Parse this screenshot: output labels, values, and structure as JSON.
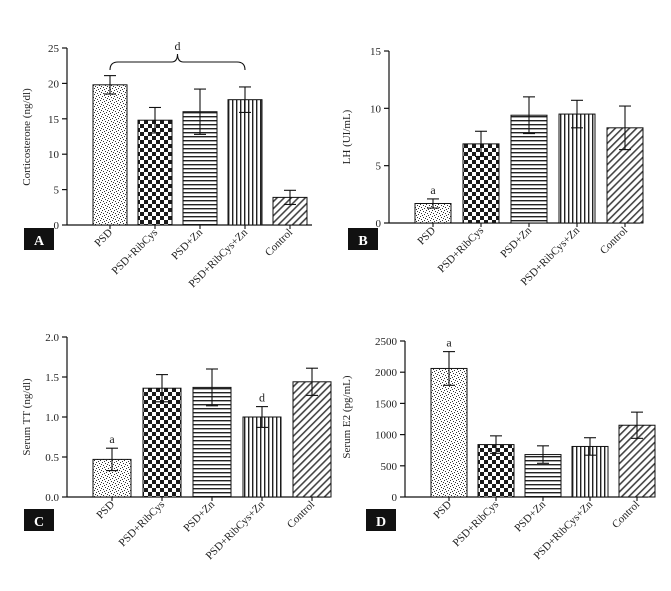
{
  "chart_data": [
    {
      "type": "bar",
      "panel_label": "A",
      "ylabel": "Corticosterone (ng/dl)",
      "ylim": [
        0,
        25
      ],
      "yticks": [
        "0",
        "5",
        "10",
        "15",
        "20",
        "25"
      ],
      "categories": [
        "PSD",
        "PSD+RibCys",
        "PSD+Zn",
        "PSD+RibCys+Zn",
        "Control"
      ],
      "values": [
        19.8,
        14.8,
        16.0,
        17.7,
        3.9
      ],
      "errors": [
        1.3,
        1.8,
        3.2,
        1.8,
        1.0
      ],
      "bracket": {
        "from": 0,
        "to": 3,
        "label": "d"
      },
      "letters": [],
      "grid": false,
      "legend": "none"
    },
    {
      "type": "bar",
      "panel_label": "B",
      "ylabel": "LH (UI/mL)",
      "ylim": [
        0,
        15
      ],
      "yticks": [
        "0",
        "5",
        "10",
        "15"
      ],
      "categories": [
        "PSD",
        "PSD+RibCys",
        "PSD+Zn",
        "PSD+RibCys+Zn",
        "Control"
      ],
      "values": [
        1.7,
        6.9,
        9.4,
        9.5,
        8.3
      ],
      "errors": [
        0.4,
        1.1,
        1.6,
        1.2,
        1.9
      ],
      "letters": [
        {
          "index": 0,
          "text": "a"
        }
      ],
      "grid": false,
      "legend": "none"
    },
    {
      "type": "bar",
      "panel_label": "C",
      "ylabel": "Serum TT (ng/dl)",
      "ylim": [
        0,
        2.0
      ],
      "yticks": [
        "0.0",
        "0.5",
        "1.0",
        "1.5",
        "2.0"
      ],
      "categories": [
        "PSD",
        "PSD+RibCys",
        "PSD+Zn",
        "PSD+RibCys+Zn",
        "Control"
      ],
      "values": [
        0.47,
        1.36,
        1.37,
        1.0,
        1.44
      ],
      "errors": [
        0.14,
        0.17,
        0.23,
        0.13,
        0.17
      ],
      "letters": [
        {
          "index": 0,
          "text": "a"
        },
        {
          "index": 3,
          "text": "d"
        }
      ],
      "grid": false,
      "legend": "none"
    },
    {
      "type": "bar",
      "panel_label": "D",
      "ylabel": "Serum E2 (pg/mL)",
      "ylim": [
        0,
        2500
      ],
      "yticks": [
        "0",
        "500",
        "1000",
        "1500",
        "2000",
        "2500"
      ],
      "categories": [
        "PSD",
        "PSD+RibCys",
        "PSD+Zn",
        "PSD+RibCys+Zn",
        "Control"
      ],
      "values": [
        2060,
        840,
        680,
        810,
        1150
      ],
      "errors": [
        270,
        140,
        140,
        140,
        210
      ],
      "letters": [
        {
          "index": 0,
          "text": "a"
        }
      ],
      "grid": false,
      "legend": "none"
    }
  ]
}
